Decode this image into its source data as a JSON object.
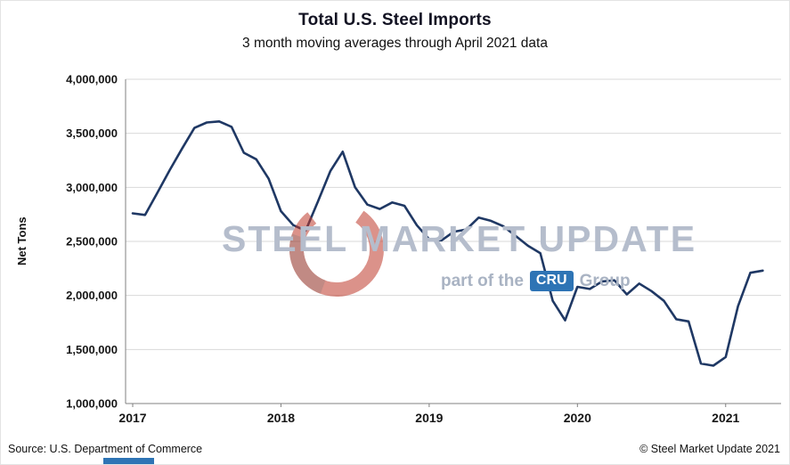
{
  "header": {
    "title": "Total U.S. Steel Imports",
    "subtitle": "3 month moving averages through April 2021 data"
  },
  "chart_data": {
    "type": "line",
    "title": "Total U.S. Steel Imports",
    "subtitle": "3 month moving averages through April 2021 data",
    "xlabel": "",
    "ylabel": "Net Tons",
    "ylim": [
      1000000,
      4000000
    ],
    "grid": "horizontal",
    "legend": "none",
    "line_color": "#1F3864",
    "x": [
      "2017-01",
      "2017-02",
      "2017-03",
      "2017-04",
      "2017-05",
      "2017-06",
      "2017-07",
      "2017-08",
      "2017-09",
      "2017-10",
      "2017-11",
      "2017-12",
      "2018-01",
      "2018-02",
      "2018-03",
      "2018-04",
      "2018-05",
      "2018-06",
      "2018-07",
      "2018-08",
      "2018-09",
      "2018-10",
      "2018-11",
      "2018-12",
      "2019-01",
      "2019-02",
      "2019-03",
      "2019-04",
      "2019-05",
      "2019-06",
      "2019-07",
      "2019-08",
      "2019-09",
      "2019-10",
      "2019-11",
      "2019-12",
      "2020-01",
      "2020-02",
      "2020-03",
      "2020-04",
      "2020-05",
      "2020-06",
      "2020-07",
      "2020-08",
      "2020-09",
      "2020-10",
      "2020-11",
      "2020-12",
      "2021-01",
      "2021-02",
      "2021-03",
      "2021-04"
    ],
    "values": [
      2760000,
      2745000,
      2950000,
      3160000,
      3360000,
      3550000,
      3600000,
      3610000,
      3560000,
      3320000,
      3260000,
      3080000,
      2780000,
      2650000,
      2600000,
      2870000,
      3150000,
      3330000,
      3000000,
      2840000,
      2800000,
      2860000,
      2830000,
      2650000,
      2520000,
      2510000,
      2590000,
      2610000,
      2720000,
      2690000,
      2640000,
      2550000,
      2460000,
      2390000,
      1950000,
      1770000,
      2080000,
      2060000,
      2130000,
      2140000,
      2010000,
      2110000,
      2040000,
      1950000,
      1780000,
      1760000,
      1370000,
      1350000,
      1430000,
      1900000,
      2210000,
      2230000
    ],
    "yticks": [
      {
        "value": 4000000,
        "label": "4,000,000"
      },
      {
        "value": 3500000,
        "label": "3,500,000"
      },
      {
        "value": 3000000,
        "label": "3,000,000"
      },
      {
        "value": 2500000,
        "label": "2,500,000"
      },
      {
        "value": 2000000,
        "label": "2,000,000"
      },
      {
        "value": 1500000,
        "label": "1,500,000"
      },
      {
        "value": 1000000,
        "label": "1,000,000"
      }
    ],
    "xticks": [
      {
        "index": 0,
        "label": "2017"
      },
      {
        "index": 12,
        "label": "2018"
      },
      {
        "index": 24,
        "label": "2019"
      },
      {
        "index": 36,
        "label": "2020"
      },
      {
        "index": 48,
        "label": "2021"
      }
    ]
  },
  "watermark": {
    "title": "STEEL MARKET UPDATE",
    "tagline_prefix": "part of the",
    "tagline_brand": "CRU",
    "tagline_suffix": "Group"
  },
  "footer": {
    "source": "Source: U.S. Department of Commerce",
    "copyright": "© Steel Market Update 2021"
  },
  "colors": {
    "line": "#1F3864",
    "grid": "#D9D9D9",
    "axis": "#808080",
    "watermark_text": "#B5BDCC",
    "watermark_red": "#BE3A2C",
    "cru_blue": "#2E74B5"
  }
}
